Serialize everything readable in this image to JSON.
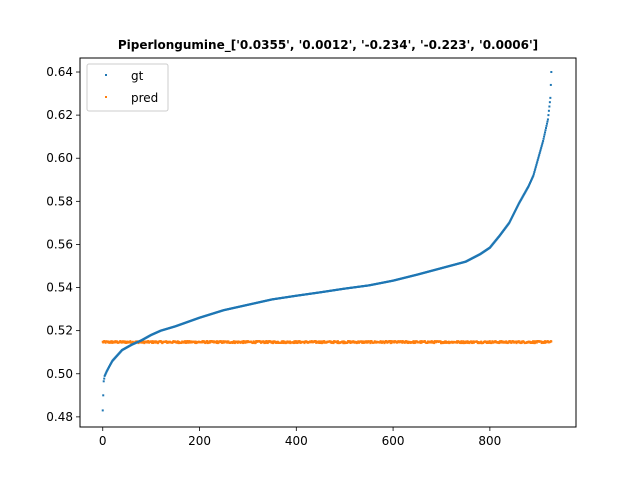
{
  "chart_data": {
    "type": "scatter",
    "title": "Piperlongumine_['0.0355', '0.0012', '-0.234', '-0.223', '0.0006']",
    "xlabel": "",
    "ylabel": "",
    "xlim": [
      -47,
      978
    ],
    "ylim": [
      0.4753,
      0.6465
    ],
    "xticks": [
      0,
      200,
      400,
      600,
      800
    ],
    "yticks": [
      0.48,
      0.5,
      0.52,
      0.54,
      0.56,
      0.58,
      0.6,
      0.62,
      0.64
    ],
    "ytick_labels": [
      "0.48",
      "0.50",
      "0.52",
      "0.54",
      "0.56",
      "0.58",
      "0.60",
      "0.62",
      "0.64"
    ],
    "grid": false,
    "legend_position": "top-left",
    "series": [
      {
        "name": "gt",
        "color": "#1f77b4",
        "n_points": 928,
        "curve_x": [
          0,
          1,
          2,
          4,
          8,
          15,
          20,
          30,
          40,
          60,
          80,
          100,
          120,
          150,
          200,
          250,
          300,
          350,
          400,
          450,
          500,
          550,
          600,
          650,
          700,
          750,
          780,
          800,
          820,
          840,
          860,
          880,
          890,
          900,
          910,
          920,
          925,
          927
        ],
        "curve_y": [
          0.483,
          0.49,
          0.4965,
          0.499,
          0.501,
          0.504,
          0.506,
          0.5085,
          0.511,
          0.5135,
          0.5155,
          0.518,
          0.52,
          0.522,
          0.526,
          0.5295,
          0.532,
          0.5345,
          0.5362,
          0.5378,
          0.5395,
          0.541,
          0.5432,
          0.546,
          0.549,
          0.552,
          0.5555,
          0.5585,
          0.564,
          0.57,
          0.579,
          0.587,
          0.592,
          0.6,
          0.608,
          0.618,
          0.628,
          0.64
        ]
      },
      {
        "name": "pred",
        "color": "#ff7f0e",
        "n_points": 928,
        "y_mean": 0.5147,
        "y_spread": 0.0005,
        "curve_x": [
          0,
          927
        ],
        "curve_y": [
          0.5147,
          0.5147
        ]
      }
    ]
  }
}
